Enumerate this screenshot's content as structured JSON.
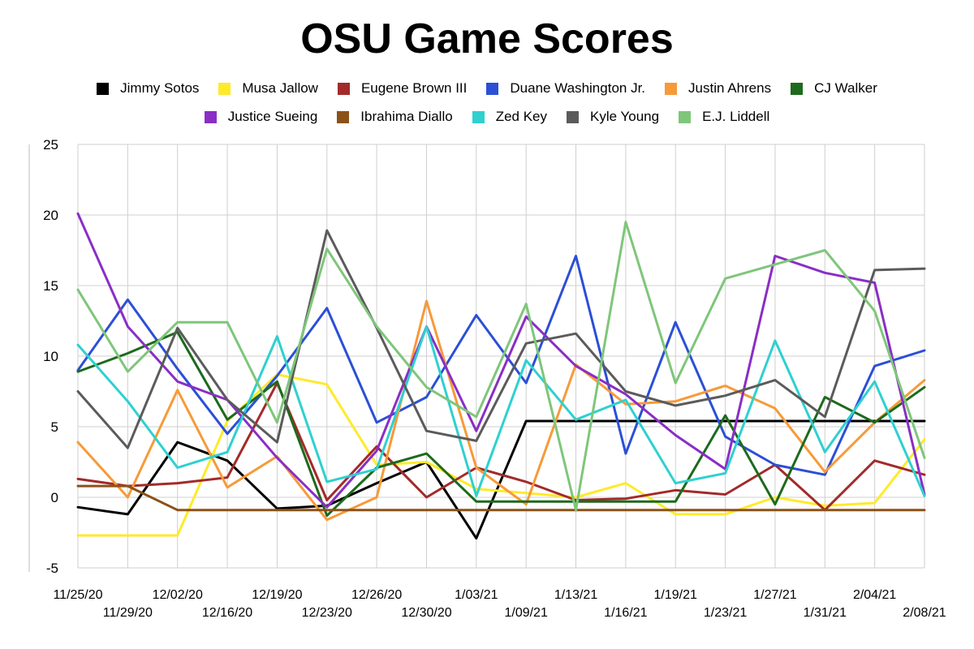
{
  "chart_data": {
    "type": "line",
    "title": "OSU Game Scores",
    "xlabel": "",
    "ylabel": "",
    "ylim": [
      -5,
      25
    ],
    "yticks": [
      -5,
      0,
      5,
      10,
      15,
      20,
      25
    ],
    "grid": true,
    "legend_position": "top",
    "categories": [
      "11/25/20",
      "11/29/20",
      "12/02/20",
      "12/16/20",
      "12/19/20",
      "12/23/20",
      "12/26/20",
      "12/30/20",
      "1/03/21",
      "1/09/21",
      "1/13/21",
      "1/16/21",
      "1/19/21",
      "1/23/21",
      "1/27/21",
      "1/31/21",
      "2/04/21",
      "2/08/21"
    ],
    "series": [
      {
        "name": "Jimmy Sotos",
        "color": "#000000",
        "values": [
          -0.7,
          -1.2,
          3.9,
          2.6,
          -0.8,
          -0.6,
          1.0,
          2.5,
          -2.9,
          5.4,
          5.4,
          5.4,
          5.4,
          5.4,
          5.4,
          5.4,
          5.4,
          5.4
        ]
      },
      {
        "name": "Musa Jallow",
        "color": "#ffea2a",
        "values": [
          -2.7,
          -2.7,
          -2.7,
          5.4,
          8.7,
          8.0,
          2.3,
          2.5,
          0.6,
          0.3,
          0.0,
          1.0,
          -1.2,
          -1.2,
          0.0,
          -0.6,
          -0.4,
          4.1
        ]
      },
      {
        "name": "Eugene Brown III",
        "color": "#a32a2a",
        "values": [
          1.3,
          0.8,
          1.0,
          1.4,
          8.1,
          -0.2,
          3.6,
          0.0,
          2.1,
          1.1,
          -0.2,
          -0.1,
          0.5,
          0.2,
          2.3,
          -0.9,
          2.6,
          1.6
        ]
      },
      {
        "name": "Duane Washington Jr.",
        "color": "#2b4fd6",
        "values": [
          9.0,
          14.0,
          9.1,
          4.5,
          8.6,
          13.4,
          5.3,
          7.1,
          12.9,
          8.1,
          17.1,
          3.1,
          12.4,
          4.3,
          2.3,
          1.6,
          9.3,
          10.4
        ]
      },
      {
        "name": "Justin Ahrens",
        "color": "#f79a38",
        "values": [
          3.9,
          0.0,
          7.6,
          0.7,
          2.9,
          -1.6,
          0.0,
          13.9,
          2.1,
          -0.5,
          9.4,
          6.6,
          6.8,
          7.9,
          6.3,
          1.8,
          5.3,
          8.3
        ]
      },
      {
        "name": "CJ Walker",
        "color": "#1d6a1d",
        "values": [
          8.9,
          10.2,
          11.7,
          5.5,
          8.2,
          -1.3,
          2.1,
          3.1,
          -0.3,
          -0.3,
          -0.3,
          -0.3,
          -0.3,
          5.8,
          -0.5,
          7.1,
          5.3,
          7.8
        ]
      },
      {
        "name": "Justice Sueing",
        "color": "#8a2ec5",
        "values": [
          20.1,
          12.1,
          8.2,
          6.9,
          2.8,
          -0.7,
          3.3,
          12.1,
          4.7,
          12.8,
          9.3,
          7.3,
          4.4,
          2.0,
          17.1,
          15.9,
          15.2,
          0.2
        ]
      },
      {
        "name": "Ibrahima Diallo",
        "color": "#8a5218",
        "values": [
          0.8,
          0.8,
          -0.9,
          -0.9,
          -0.9,
          -0.9,
          -0.9,
          -0.9,
          -0.9,
          -0.9,
          -0.9,
          -0.9,
          -0.9,
          -0.9,
          -0.9,
          -0.9,
          -0.9,
          -0.9
        ]
      },
      {
        "name": "Zed Key",
        "color": "#2fd0d0",
        "values": [
          10.8,
          6.8,
          2.1,
          3.2,
          11.4,
          1.1,
          2.0,
          12.1,
          0.1,
          9.7,
          5.5,
          6.9,
          1.0,
          1.7,
          11.1,
          3.2,
          8.2,
          0.1
        ]
      },
      {
        "name": "Kyle Young",
        "color": "#5b5b5b",
        "values": [
          7.5,
          3.5,
          12.0,
          6.9,
          3.9,
          18.9,
          12.0,
          4.7,
          4.0,
          10.9,
          11.6,
          7.5,
          6.5,
          7.2,
          8.3,
          5.7,
          16.1,
          16.2
        ]
      },
      {
        "name": "E.J. Liddell",
        "color": "#7fc67a",
        "values": [
          14.7,
          8.9,
          12.4,
          12.4,
          5.3,
          17.6,
          12.1,
          7.8,
          5.7,
          13.7,
          -0.9,
          19.5,
          8.1,
          15.5,
          16.5,
          17.5,
          13.2,
          2.8
        ]
      }
    ]
  }
}
